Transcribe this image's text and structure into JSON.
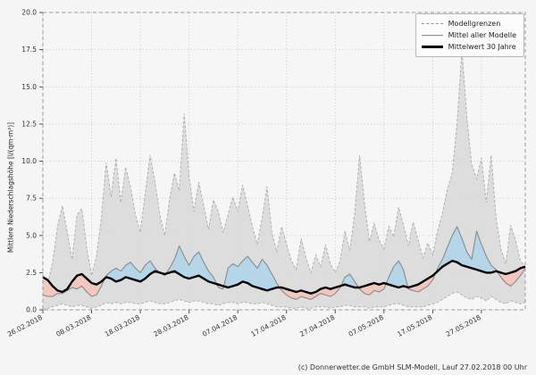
{
  "figure": {
    "ylabel": "Mittlere Niederschlagshöhe [l/(qm·m²)]",
    "footer": "(c) Donnerwetter.de GmbH SLM-Modell, Lauf 27.02.2018 00 Uhr",
    "legend": [
      {
        "label": "Modellgrenzen",
        "style": "dashed-gray-line"
      },
      {
        "label": "Mittel aller Modelle",
        "style": "solid-gray-line"
      },
      {
        "label": "Mittelwert 30 Jahre",
        "style": "thick-black-line"
      }
    ]
  },
  "chart_data": {
    "type": "line",
    "title": "",
    "xlabel": "",
    "ylabel": "Mittlere Niederschlagshöhe [l/(qm·m²)]",
    "ylim": [
      0,
      20
    ],
    "y_ticks": [
      0,
      2.5,
      5,
      7.5,
      10,
      12.5,
      15,
      17.5,
      20
    ],
    "x_tick_labels": [
      "26.02.2018",
      "08.03.2018",
      "18.03.2018",
      "28.03.2018",
      "07.04.2018",
      "17.04.2018",
      "27.04.2018",
      "07.05.2018",
      "17.05.2018",
      "27.05.2018"
    ],
    "x_tick_positions": [
      0,
      10,
      20,
      30,
      40,
      50,
      60,
      70,
      80,
      90
    ],
    "x_unit": "day-index from 26.02.2018, daily values",
    "grid": "dotted",
    "legend_position": "upper right",
    "series": [
      {
        "name": "Modellgrenzen (oben)",
        "style": "dashed gray envelope, gray fill",
        "values": [
          1.3,
          1.8,
          3.2,
          5.6,
          7.0,
          5.2,
          3.4,
          6.4,
          6.8,
          4.2,
          2.3,
          3.6,
          6.2,
          9.9,
          7.6,
          10.2,
          7.2,
          9.6,
          8.2,
          6.4,
          5.2,
          7.8,
          10.4,
          8.6,
          6.4,
          5.0,
          7.4,
          9.2,
          8.0,
          13.2,
          9.0,
          6.6,
          8.6,
          7.0,
          5.4,
          7.4,
          6.6,
          5.2,
          6.4,
          7.6,
          6.6,
          8.4,
          7.0,
          5.6,
          4.4,
          6.2,
          8.3,
          5.2,
          3.9,
          5.6,
          4.4,
          3.3,
          2.7,
          4.8,
          3.5,
          2.5,
          3.7,
          2.9,
          4.4,
          3.1,
          2.5,
          3.3,
          5.3,
          4.0,
          6.5,
          10.4,
          7.2,
          4.6,
          5.8,
          4.7,
          4.1,
          5.6,
          4.9,
          6.9,
          5.7,
          4.3,
          5.9,
          4.7,
          3.5,
          4.5,
          3.7,
          5.3,
          6.5,
          8.1,
          9.2,
          12.5,
          17.5,
          13.0,
          9.8,
          8.8,
          10.2,
          7.2,
          10.4,
          6.2,
          4.1,
          3.1,
          5.7,
          4.7,
          3.3,
          2.9
        ]
      },
      {
        "name": "Modellgrenzen (unten)",
        "style": "dashed gray envelope, gray fill",
        "values": [
          0.0,
          0.1,
          0.2,
          0.3,
          0.4,
          0.3,
          0.2,
          0.3,
          0.3,
          0.2,
          0.1,
          0.2,
          0.3,
          0.5,
          0.4,
          0.5,
          0.4,
          0.5,
          0.5,
          0.4,
          0.4,
          0.5,
          0.6,
          0.5,
          0.4,
          0.4,
          0.5,
          0.6,
          0.7,
          0.6,
          0.5,
          0.6,
          0.6,
          0.5,
          0.4,
          0.4,
          0.3,
          0.4,
          0.5,
          0.5,
          0.4,
          0.5,
          0.5,
          0.4,
          0.4,
          0.5,
          0.4,
          0.3,
          0.2,
          0.2,
          0.2,
          0.1,
          0.1,
          0.2,
          0.1,
          0.1,
          0.2,
          0.2,
          0.2,
          0.1,
          0.2,
          0.2,
          0.3,
          0.3,
          0.2,
          0.2,
          0.2,
          0.1,
          0.2,
          0.2,
          0.2,
          0.3,
          0.4,
          0.4,
          0.3,
          0.2,
          0.2,
          0.2,
          0.2,
          0.3,
          0.4,
          0.5,
          0.7,
          0.9,
          1.1,
          1.2,
          1.0,
          0.8,
          0.7,
          0.9,
          0.8,
          0.6,
          0.9,
          0.7,
          0.5,
          0.4,
          0.6,
          0.5,
          0.4,
          0.5
        ]
      },
      {
        "name": "Mittel aller Modelle",
        "style": "solid gray line; blue fill above 30y mean, red fill below",
        "values": [
          1.0,
          0.9,
          0.9,
          1.1,
          1.1,
          1.3,
          1.5,
          1.4,
          1.6,
          1.2,
          0.9,
          1.0,
          1.6,
          2.3,
          2.6,
          2.8,
          2.6,
          3.0,
          3.2,
          2.8,
          2.5,
          3.0,
          3.3,
          2.8,
          2.5,
          2.3,
          2.8,
          3.4,
          4.3,
          3.6,
          3.0,
          3.6,
          3.9,
          3.2,
          2.6,
          2.2,
          1.5,
          1.4,
          2.8,
          3.1,
          2.9,
          3.3,
          3.6,
          3.2,
          2.8,
          3.4,
          3.0,
          2.4,
          1.8,
          1.3,
          1.0,
          0.8,
          0.7,
          0.9,
          0.8,
          0.7,
          0.9,
          1.1,
          1.0,
          0.9,
          1.1,
          1.5,
          2.2,
          2.4,
          1.9,
          1.4,
          1.1,
          1.0,
          1.3,
          1.2,
          1.4,
          2.2,
          2.9,
          3.3,
          2.7,
          1.4,
          1.3,
          1.2,
          1.4,
          1.6,
          2.0,
          2.8,
          3.4,
          4.2,
          5.0,
          5.6,
          4.8,
          3.9,
          3.4,
          5.3,
          4.4,
          3.6,
          3.0,
          2.7,
          2.2,
          1.8,
          1.6,
          1.9,
          2.3,
          2.8
        ]
      },
      {
        "name": "Mittelwert 30 Jahre",
        "style": "thick black line",
        "values": [
          2.2,
          2.0,
          1.6,
          1.3,
          1.2,
          1.4,
          1.9,
          2.3,
          2.4,
          2.1,
          1.8,
          1.7,
          1.9,
          2.2,
          2.1,
          1.9,
          2.0,
          2.2,
          2.1,
          2.0,
          1.9,
          2.1,
          2.4,
          2.6,
          2.5,
          2.4,
          2.5,
          2.6,
          2.4,
          2.2,
          2.1,
          2.2,
          2.3,
          2.1,
          1.9,
          1.8,
          1.7,
          1.6,
          1.5,
          1.6,
          1.7,
          1.9,
          1.8,
          1.6,
          1.5,
          1.4,
          1.3,
          1.4,
          1.5,
          1.5,
          1.4,
          1.3,
          1.2,
          1.3,
          1.2,
          1.1,
          1.2,
          1.4,
          1.5,
          1.4,
          1.5,
          1.6,
          1.7,
          1.6,
          1.5,
          1.5,
          1.6,
          1.7,
          1.8,
          1.7,
          1.8,
          1.7,
          1.6,
          1.5,
          1.6,
          1.5,
          1.6,
          1.7,
          1.9,
          2.1,
          2.3,
          2.6,
          2.9,
          3.1,
          3.3,
          3.2,
          3.0,
          2.9,
          2.8,
          2.7,
          2.6,
          2.5,
          2.5,
          2.6,
          2.5,
          2.4,
          2.5,
          2.6,
          2.8,
          2.9
        ]
      }
    ],
    "colors": {
      "plot_bg": "#f6f6f6",
      "band": "#dadada",
      "band_edge": "#b0b0b0",
      "above_30y_fill": "#b5d6e9",
      "below_30y_fill": "#f2c7bf",
      "model_mean_line": "#8a8a8a",
      "mean30_line": "#000000"
    }
  }
}
